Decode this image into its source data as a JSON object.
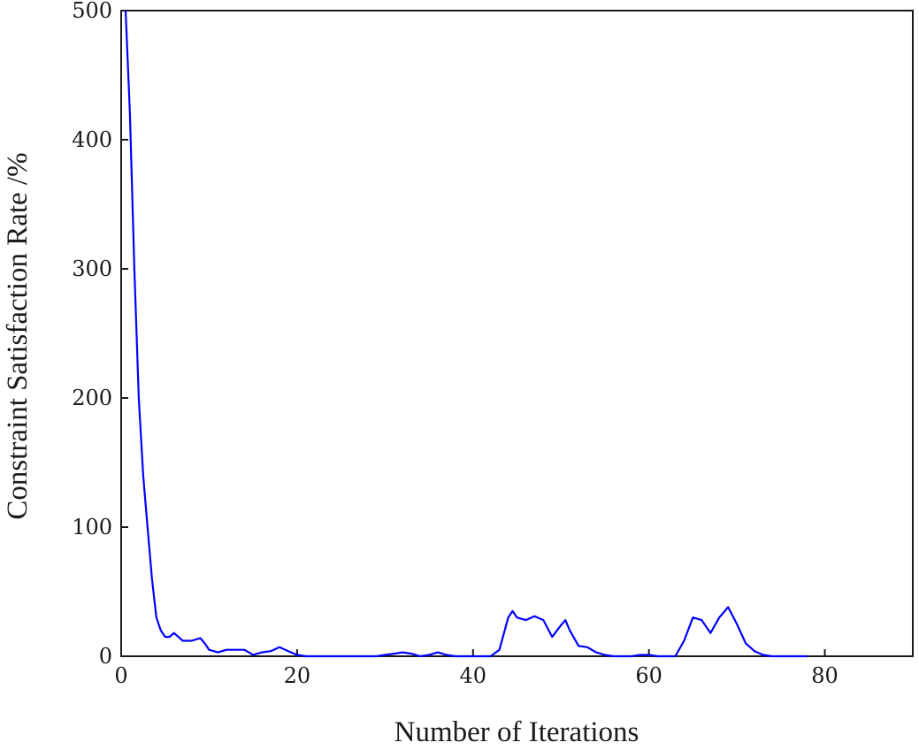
{
  "chart_data": {
    "type": "line",
    "title": "",
    "xlabel": "Number of Iterations",
    "ylabel": "Constraint Satisfaction Rate /%",
    "xlim": [
      0,
      90
    ],
    "ylim": [
      0,
      500
    ],
    "xticks": [
      0,
      20,
      40,
      60,
      80
    ],
    "yticks": [
      0,
      100,
      200,
      300,
      400,
      500
    ],
    "xtick_labels": [
      "0",
      "20",
      "40",
      "60",
      "80"
    ],
    "ytick_labels": [
      "0",
      "100",
      "200",
      "300",
      "400",
      "500"
    ],
    "grid": false,
    "legend": "none",
    "line_color": "#0000ff",
    "series": [
      {
        "x": [
          0.5,
          1,
          1.5,
          2,
          2.5,
          3,
          3.5,
          4,
          4.5,
          5,
          5.5,
          6,
          6.5,
          7,
          7.5,
          8,
          8.5,
          9,
          9.5,
          10,
          11,
          12,
          13,
          14,
          14.5,
          15,
          16,
          17,
          18,
          19,
          20,
          21,
          22,
          23,
          24,
          25,
          26,
          27,
          28,
          29,
          30,
          31,
          32,
          33,
          34,
          35,
          36,
          37,
          38,
          39,
          40,
          41,
          42,
          43,
          44,
          44.5,
          45,
          46,
          47,
          48,
          49,
          50,
          50.5,
          51,
          52,
          53,
          54,
          55,
          56,
          57,
          58,
          59,
          60,
          61,
          62,
          63,
          64,
          65,
          66,
          67,
          68,
          69,
          70,
          71,
          72,
          73,
          74,
          75,
          76,
          77,
          78
        ],
        "y": [
          500,
          420,
          300,
          200,
          140,
          100,
          60,
          30,
          20,
          15,
          15,
          18,
          15,
          12,
          12,
          12,
          13,
          14,
          10,
          5,
          3,
          5,
          5,
          5,
          3,
          1,
          3,
          4,
          7,
          4,
          1,
          0,
          0,
          0,
          0,
          0,
          0,
          0,
          0,
          0,
          1,
          2,
          3,
          2,
          0,
          1,
          3,
          1,
          0,
          0,
          0,
          0,
          0,
          5,
          30,
          35,
          30,
          28,
          31,
          28,
          15,
          24,
          28,
          20,
          8,
          7,
          3,
          1,
          0,
          0,
          0,
          1,
          1,
          0,
          0,
          0,
          12,
          30,
          28,
          18,
          30,
          38,
          25,
          10,
          4,
          1,
          0,
          0,
          0,
          0,
          0
        ]
      }
    ]
  }
}
